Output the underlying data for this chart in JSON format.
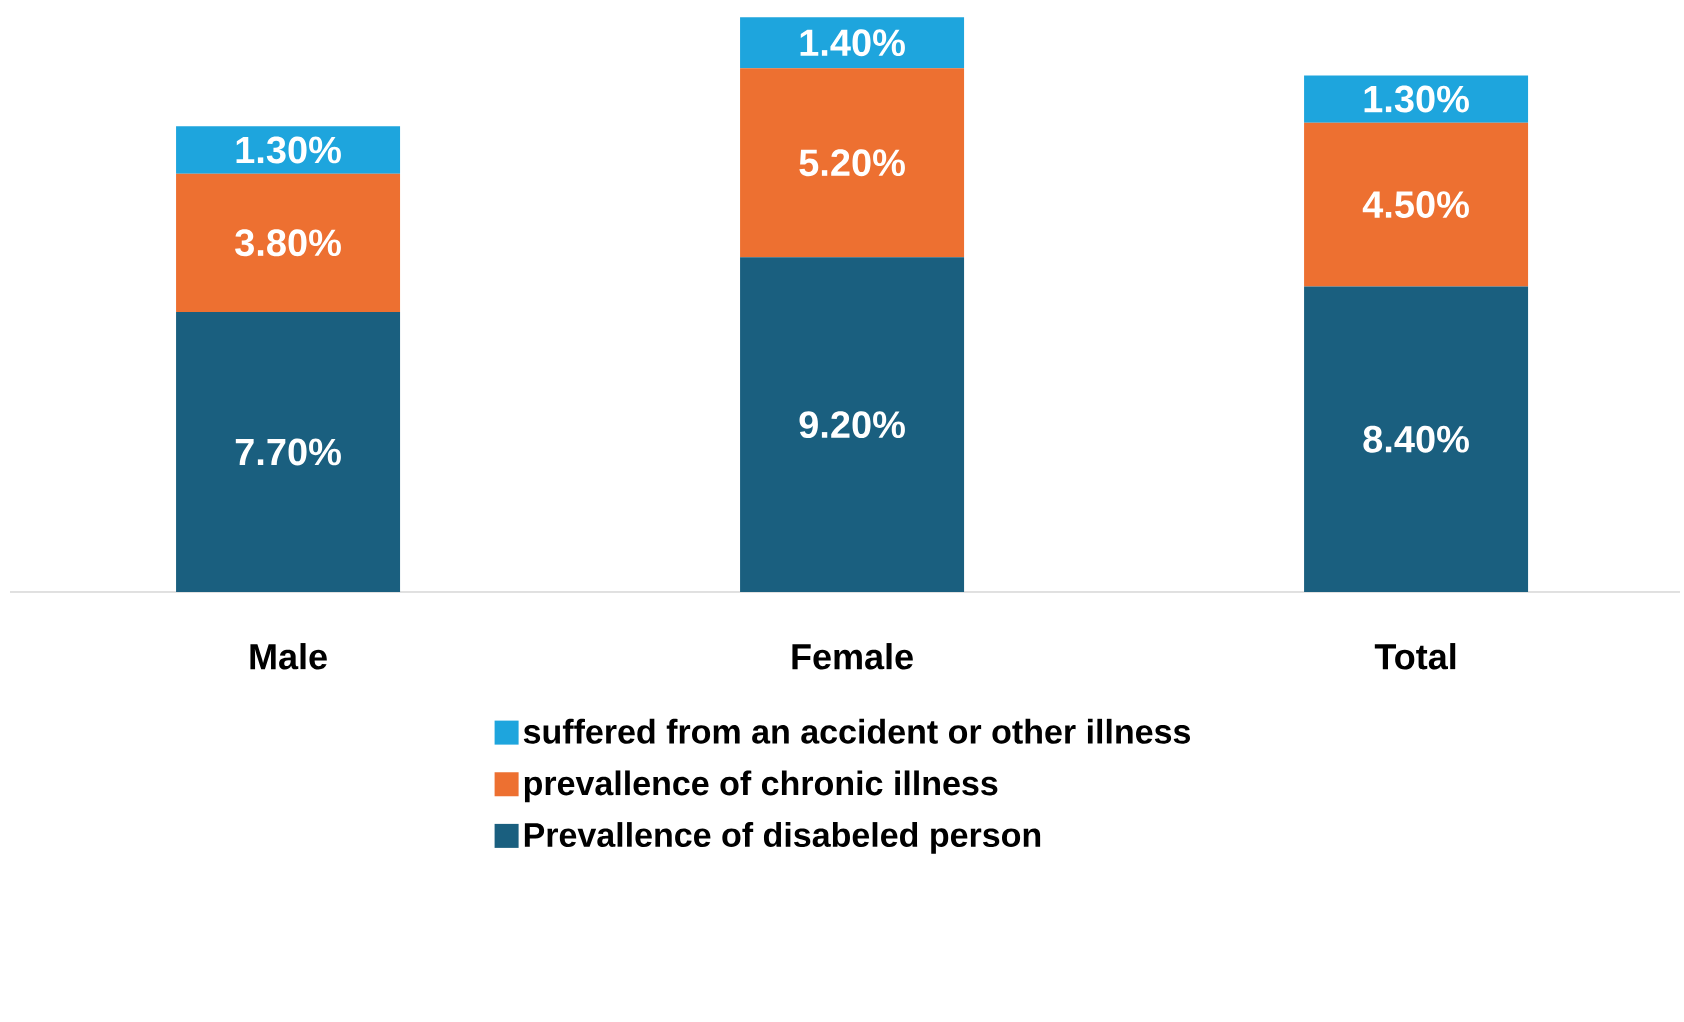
{
  "chart_data": {
    "type": "bar",
    "stacked": true,
    "legend": "bottom",
    "categories": [
      "Male",
      "Female",
      "Total"
    ],
    "series": [
      {
        "name": "Prevallence of disabeled person",
        "color": "#1a5f7f",
        "values": [
          7.7,
          9.2,
          8.4
        ],
        "value_labels": [
          "7.70%",
          "9.20%",
          "8.40%"
        ]
      },
      {
        "name": "prevallence of chronic illness",
        "color": "#ed7031",
        "values": [
          3.8,
          5.2,
          4.5
        ],
        "value_labels": [
          "3.80%",
          "5.20%",
          "4.50%"
        ]
      },
      {
        "name": "suffered from an accident or other illness",
        "color": "#1ea5dd",
        "values": [
          1.3,
          1.4,
          1.3
        ],
        "value_labels": [
          "1.30%",
          "1.40%",
          "1.30%"
        ]
      }
    ]
  }
}
